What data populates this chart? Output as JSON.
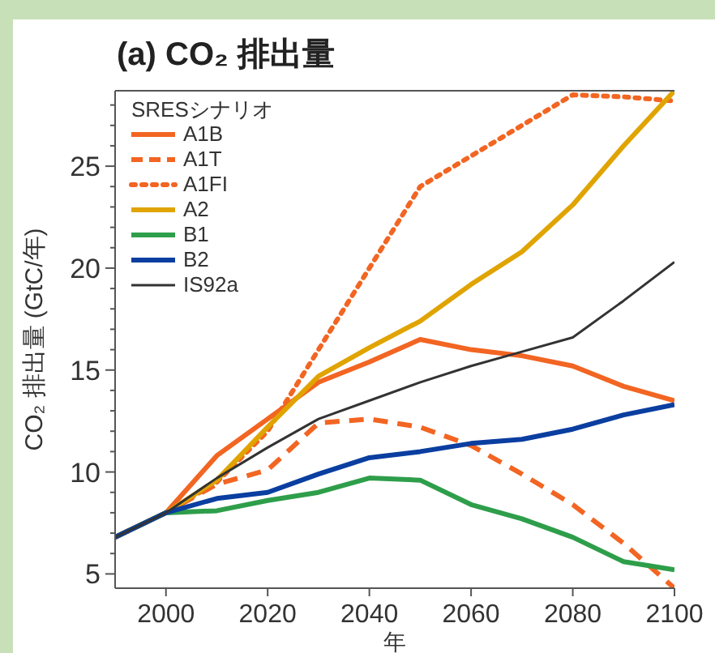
{
  "chart_data": {
    "type": "line",
    "title": "(a) CO₂ 排出量",
    "xlabel": "年",
    "ylabel": "CO₂ 排出量 (GtC/年)",
    "legend_title": "SRESシナリオ",
    "legend": "top left",
    "grid": false,
    "x": [
      1990,
      2000,
      2010,
      2020,
      2030,
      2040,
      2050,
      2060,
      2070,
      2080,
      2090,
      2100
    ],
    "series": [
      {
        "name": "A1B",
        "color": "#f26522",
        "line_style": "solid",
        "values": [
          6.8,
          8.0,
          10.8,
          12.6,
          14.4,
          15.4,
          16.5,
          16.0,
          15.7,
          15.2,
          14.2,
          13.5
        ]
      },
      {
        "name": "A1T",
        "color": "#f26522",
        "line_style": "dashed",
        "values": [
          6.8,
          8.0,
          9.4,
          10.1,
          12.4,
          12.6,
          12.2,
          11.3,
          9.9,
          8.4,
          6.5,
          4.3
        ]
      },
      {
        "name": "A1FI",
        "color": "#f26522",
        "line_style": "dotted",
        "values": [
          6.8,
          8.0,
          9.5,
          12.0,
          16.0,
          20.0,
          24.0,
          25.5,
          27.0,
          28.5,
          28.4,
          28.2
        ]
      },
      {
        "name": "A2",
        "color": "#e0a400",
        "line_style": "solid",
        "values": [
          6.8,
          8.0,
          9.6,
          12.2,
          14.7,
          16.1,
          17.4,
          19.2,
          20.8,
          23.1,
          26.0,
          28.7
        ]
      },
      {
        "name": "B1",
        "color": "#2e9e4a",
        "line_style": "solid",
        "values": [
          6.8,
          8.0,
          8.1,
          8.6,
          9.0,
          9.7,
          9.6,
          8.4,
          7.7,
          6.8,
          5.6,
          5.2
        ]
      },
      {
        "name": "B2",
        "color": "#0a3ea0",
        "line_style": "solid",
        "values": [
          6.8,
          8.0,
          8.7,
          9.0,
          9.9,
          10.7,
          11.0,
          11.4,
          11.6,
          12.1,
          12.8,
          13.3
        ]
      },
      {
        "name": "IS92a",
        "color": "#333333",
        "line_style": "solid",
        "values": [
          6.8,
          8.0,
          9.7,
          11.2,
          12.6,
          13.5,
          14.4,
          15.2,
          15.9,
          16.6,
          18.4,
          20.3
        ]
      }
    ],
    "xlim": [
      1990,
      2100
    ],
    "ylim": [
      4.3,
      28.7
    ],
    "xticks": [
      2000,
      2020,
      2040,
      2060,
      2080,
      2100
    ],
    "yticks": [
      5,
      {
        "value": 6,
        "label": null
      },
      {
        "value": 7,
        "label": null
      },
      {
        "value": 8,
        "label": null
      },
      {
        "value": 9,
        "label": null
      },
      10,
      {
        "value": 11,
        "label": null
      },
      {
        "value": 12,
        "label": null
      },
      {
        "value": 13,
        "label": null
      },
      {
        "value": 14,
        "label": null
      },
      15,
      {
        "value": 16,
        "label": null
      },
      {
        "value": 17,
        "label": null
      },
      {
        "value": 18,
        "label": null
      },
      {
        "value": 19,
        "label": null
      },
      20,
      {
        "value": 21,
        "label": null
      },
      {
        "value": 22,
        "label": null
      },
      {
        "value": 23,
        "label": null
      },
      {
        "value": 24,
        "label": null
      },
      25,
      {
        "value": 26,
        "label": null
      },
      {
        "value": 27,
        "label": null
      },
      {
        "value": 28,
        "label": null
      }
    ]
  }
}
